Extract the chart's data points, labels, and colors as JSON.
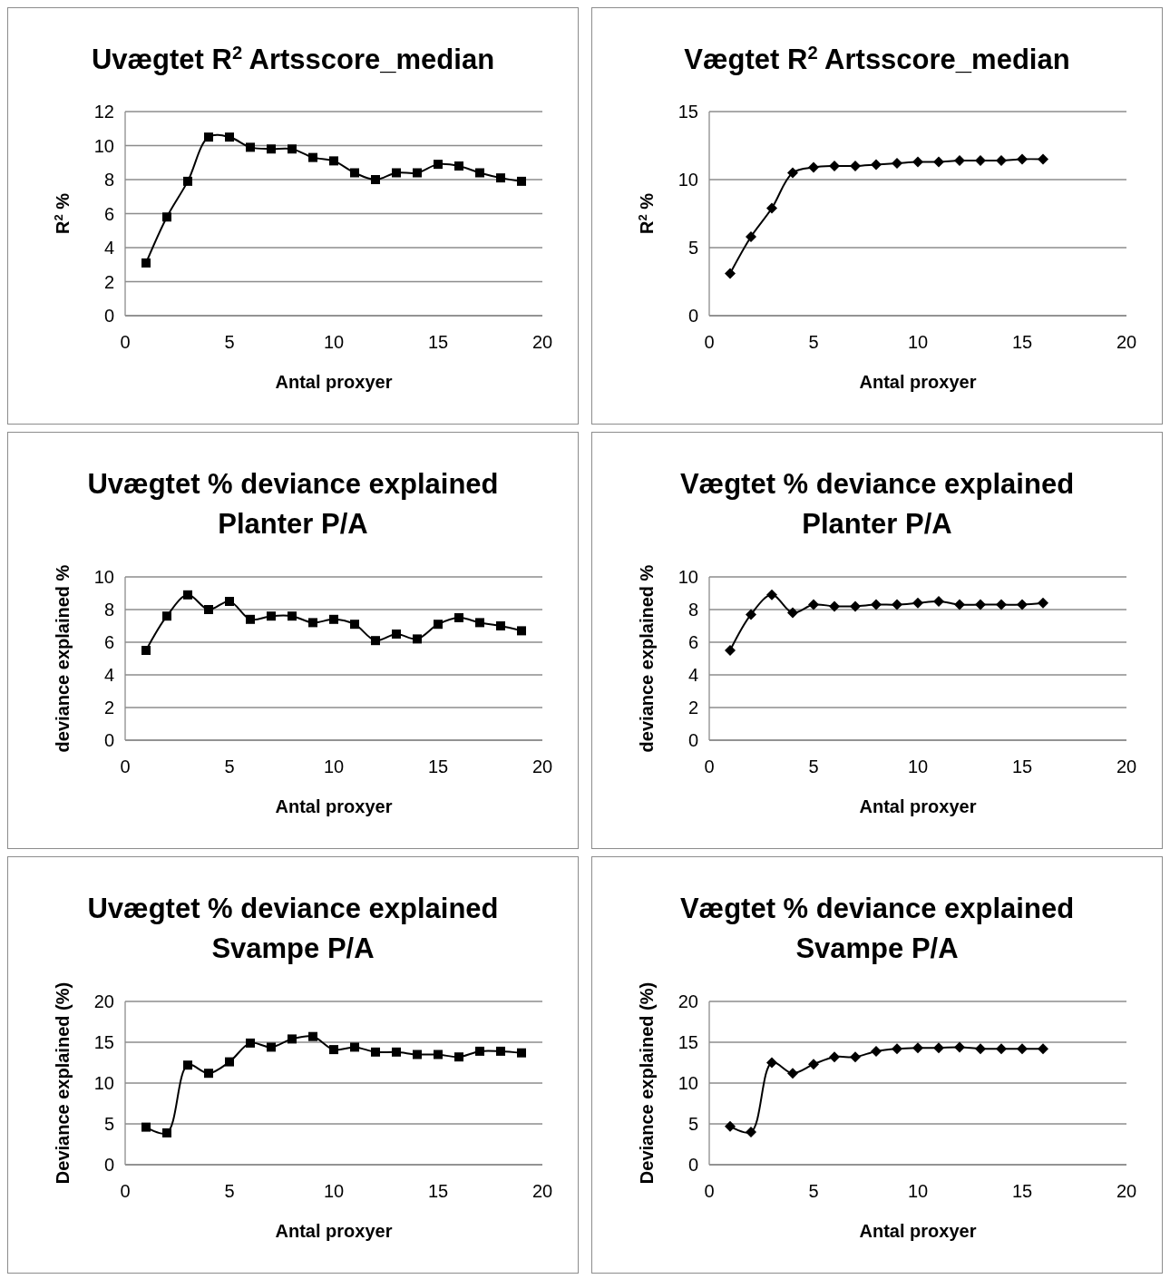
{
  "chart_data": [
    {
      "type": "line",
      "title": "Uvægtet R$^{2}$ Artsscore_median",
      "xlabel": "Antal proxyer",
      "ylabel": "R$^{2}$ %",
      "xlim": [
        0,
        20
      ],
      "xticks": [
        0,
        5,
        10,
        15,
        20
      ],
      "ylim": [
        0,
        12
      ],
      "yticks": [
        0,
        2,
        4,
        6,
        8,
        10,
        12
      ],
      "grid": "y",
      "marker": "square",
      "line_style": "solid",
      "series": [
        {
          "color": "#000000",
          "x": [
            1,
            2,
            3,
            4,
            5,
            6,
            7,
            8,
            9,
            10,
            11,
            12,
            13,
            14,
            15,
            16,
            17,
            18,
            19
          ],
          "values": [
            3.1,
            5.8,
            7.9,
            10.5,
            10.5,
            9.9,
            9.8,
            9.8,
            9.3,
            9.1,
            8.4,
            8.0,
            8.4,
            8.4,
            8.9,
            8.8,
            8.4,
            8.1,
            7.9
          ]
        }
      ]
    },
    {
      "type": "line",
      "title": "Vægtet R$^{2}$ Artsscore_median",
      "xlabel": "Antal proxyer",
      "ylabel": "R$^{2}$ %",
      "xlim": [
        0,
        20
      ],
      "xticks": [
        0,
        5,
        10,
        15,
        20
      ],
      "ylim": [
        0,
        15
      ],
      "yticks": [
        0,
        5,
        10,
        15
      ],
      "grid": "y",
      "marker": "diamond",
      "line_style": "solid",
      "series": [
        {
          "color": "#000000",
          "x": [
            1,
            2,
            3,
            4,
            5,
            6,
            7,
            8,
            9,
            10,
            11,
            12,
            13,
            14,
            15,
            16
          ],
          "values": [
            3.1,
            5.8,
            7.9,
            10.5,
            10.9,
            11.0,
            11.0,
            11.1,
            11.2,
            11.3,
            11.3,
            11.4,
            11.4,
            11.4,
            11.5,
            11.5
          ]
        }
      ]
    },
    {
      "type": "line",
      "title": "Uvægtet % deviance explained Planter P/A",
      "xlabel": "Antal proxyer",
      "ylabel": "deviance explained %",
      "xlim": [
        0,
        20
      ],
      "xticks": [
        0,
        5,
        10,
        15,
        20
      ],
      "ylim": [
        0,
        10
      ],
      "yticks": [
        0,
        2,
        4,
        6,
        8,
        10
      ],
      "grid": "y",
      "marker": "square",
      "line_style": "solid",
      "series": [
        {
          "color": "#000000",
          "x": [
            1,
            2,
            3,
            4,
            5,
            6,
            7,
            8,
            9,
            10,
            11,
            12,
            13,
            14,
            15,
            16,
            17,
            18,
            19
          ],
          "values": [
            5.5,
            7.6,
            8.9,
            8.0,
            8.5,
            7.4,
            7.6,
            7.6,
            7.2,
            7.4,
            7.1,
            6.1,
            6.5,
            6.2,
            7.1,
            7.5,
            7.2,
            7.0,
            6.7
          ]
        }
      ]
    },
    {
      "type": "line",
      "title": "Vægtet % deviance explained Planter P/A",
      "xlabel": "Antal proxyer",
      "ylabel": "deviance explained %",
      "xlim": [
        0,
        20
      ],
      "xticks": [
        0,
        5,
        10,
        15,
        20
      ],
      "ylim": [
        0,
        10
      ],
      "yticks": [
        0,
        2,
        4,
        6,
        8,
        10
      ],
      "grid": "y",
      "marker": "diamond",
      "line_style": "solid",
      "series": [
        {
          "color": "#000000",
          "x": [
            1,
            2,
            3,
            4,
            5,
            6,
            7,
            8,
            9,
            10,
            11,
            12,
            13,
            14,
            15,
            16
          ],
          "values": [
            5.5,
            7.7,
            8.9,
            7.8,
            8.3,
            8.2,
            8.2,
            8.3,
            8.3,
            8.4,
            8.5,
            8.3,
            8.3,
            8.3,
            8.3,
            8.4
          ]
        }
      ]
    },
    {
      "type": "line",
      "title": "Uvægtet % deviance explained Svampe P/A",
      "xlabel": "Antal proxyer",
      "ylabel": "Deviance explained (%)",
      "xlim": [
        0,
        20
      ],
      "xticks": [
        0,
        5,
        10,
        15,
        20
      ],
      "ylim": [
        0,
        20
      ],
      "yticks": [
        0,
        5,
        10,
        15,
        20
      ],
      "grid": "y",
      "marker": "square",
      "line_style": "solid",
      "series": [
        {
          "color": "#000000",
          "x": [
            1,
            2,
            3,
            4,
            5,
            6,
            7,
            8,
            9,
            10,
            11,
            12,
            13,
            14,
            15,
            16,
            17,
            18,
            19
          ],
          "values": [
            4.6,
            3.9,
            12.2,
            11.2,
            12.6,
            14.9,
            14.4,
            15.4,
            15.7,
            14.1,
            14.4,
            13.8,
            13.8,
            13.5,
            13.5,
            13.2,
            13.9,
            13.9,
            13.7
          ]
        }
      ]
    },
    {
      "type": "line",
      "title": "Vægtet % deviance explained Svampe P/A",
      "xlabel": "Antal proxyer",
      "ylabel": "Deviance explained (%)",
      "xlim": [
        0,
        20
      ],
      "xticks": [
        0,
        5,
        10,
        15,
        20
      ],
      "ylim": [
        0,
        20
      ],
      "yticks": [
        0,
        5,
        10,
        15,
        20
      ],
      "grid": "y",
      "marker": "diamond",
      "line_style": "solid",
      "series": [
        {
          "color": "#000000",
          "x": [
            1,
            2,
            3,
            4,
            5,
            6,
            7,
            8,
            9,
            10,
            11,
            12,
            13,
            14,
            15,
            16
          ],
          "values": [
            4.7,
            4.0,
            12.5,
            11.2,
            12.3,
            13.2,
            13.2,
            13.9,
            14.2,
            14.3,
            14.3,
            14.4,
            14.2,
            14.2,
            14.2,
            14.2
          ]
        }
      ]
    }
  ]
}
